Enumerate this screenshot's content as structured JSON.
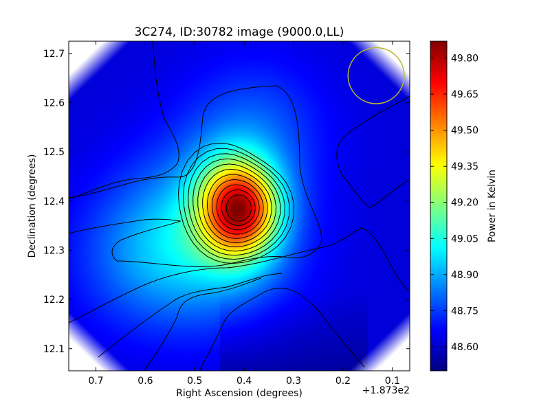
{
  "chart_data": {
    "type": "heatmap",
    "title": "3C274, ID:30782 image (9000.0,LL)",
    "xlabel": "Right Ascension (degrees)",
    "ylabel": "Declination (degrees)",
    "x_offset_label": "+1.873e2",
    "x_ticks": [
      {
        "value": 0.7,
        "label": "0.7"
      },
      {
        "value": 0.6,
        "label": "0.6"
      },
      {
        "value": 0.5,
        "label": "0.5"
      },
      {
        "value": 0.4,
        "label": "0.4"
      },
      {
        "value": 0.3,
        "label": "0.3"
      },
      {
        "value": 0.2,
        "label": "0.2"
      },
      {
        "value": 0.1,
        "label": "0.1"
      }
    ],
    "y_ticks": [
      {
        "value": 12.7,
        "label": "12.7"
      },
      {
        "value": 12.6,
        "label": "12.6"
      },
      {
        "value": 12.5,
        "label": "12.5"
      },
      {
        "value": 12.4,
        "label": "12.4"
      },
      {
        "value": 12.3,
        "label": "12.3"
      },
      {
        "value": 12.2,
        "label": "12.2"
      },
      {
        "value": 12.1,
        "label": "12.1"
      }
    ],
    "xlim": [
      0.755,
      0.065
    ],
    "ylim": [
      12.055,
      12.725
    ],
    "colorbar": {
      "label": "Power in Kelvin",
      "range": [
        48.5,
        49.87
      ],
      "ticks": [
        "49.80",
        "49.65",
        "49.50",
        "49.35",
        "49.20",
        "49.05",
        "48.90",
        "48.75",
        "48.60"
      ],
      "tick_values": [
        49.8,
        49.65,
        49.5,
        49.35,
        49.2,
        49.05,
        48.9,
        48.75,
        48.6
      ]
    },
    "peak": {
      "ra": 0.41,
      "dec": 12.385,
      "value": 49.86
    },
    "background_value": 48.62,
    "beam_circle": {
      "ra": 0.133,
      "dec": 12.655,
      "radius_deg": 0.057,
      "color": "#b8b82e"
    },
    "grid": false,
    "contour_color": "#000000"
  }
}
